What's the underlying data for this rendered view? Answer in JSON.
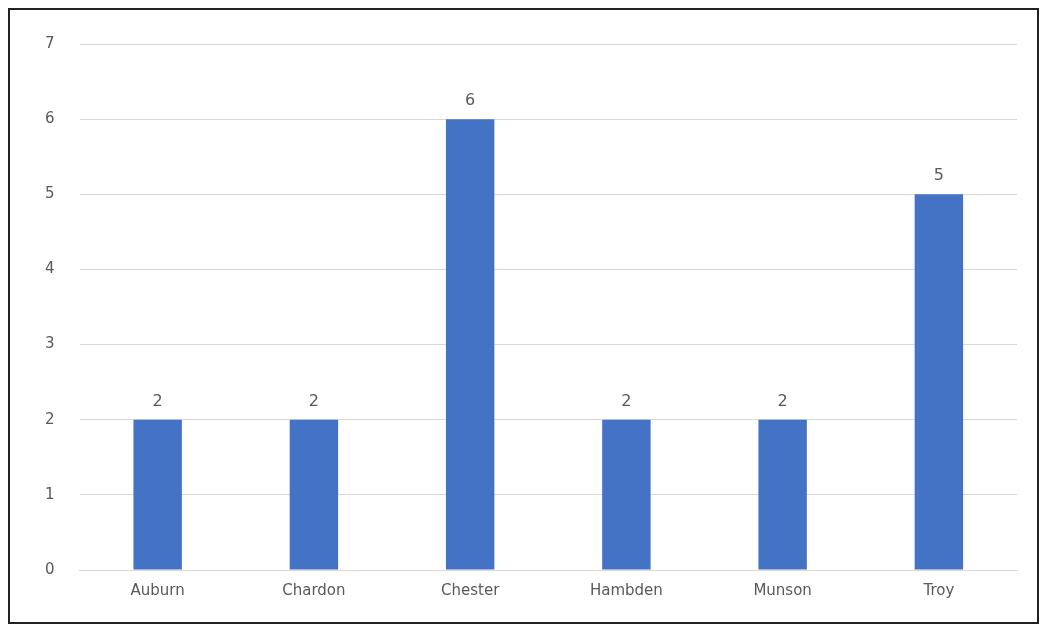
{
  "chart_data": {
    "type": "bar",
    "categories": [
      "Auburn",
      "Chardon",
      "Chester",
      "Hambden",
      "Munson",
      "Troy"
    ],
    "values": [
      2,
      2,
      6,
      2,
      2,
      5
    ],
    "color": "#4472c4",
    "ylim": [
      0,
      7
    ],
    "yticks": [
      0,
      1,
      2,
      3,
      4,
      5,
      6,
      7
    ],
    "grid": "y",
    "data_labels": true,
    "legend": false
  }
}
